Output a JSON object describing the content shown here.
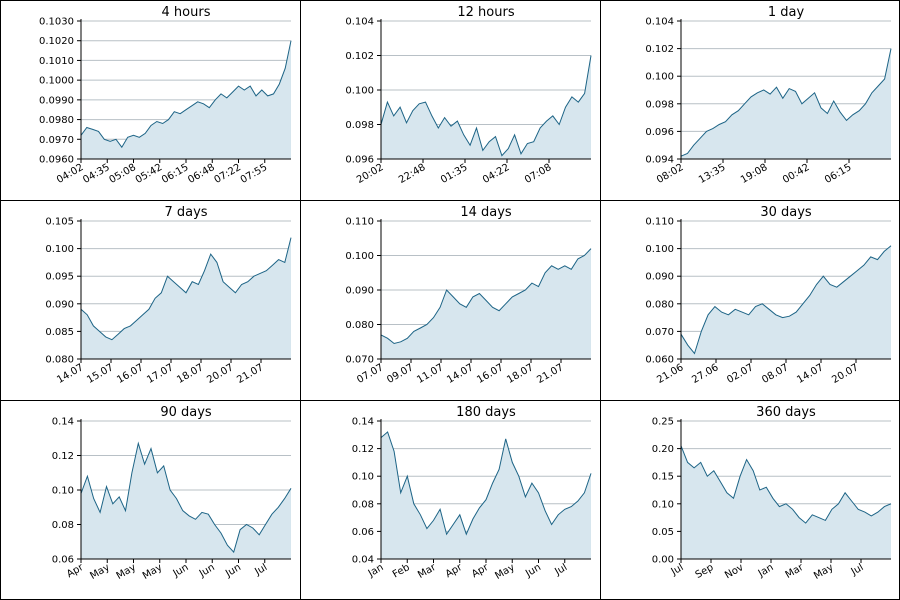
{
  "colors": {
    "line": "#1d6486",
    "fill": "#d7e6ee",
    "grid": "#b8c0c6"
  },
  "chart_data": [
    {
      "type": "area",
      "title": "4 hours",
      "ylim": [
        0.096,
        0.103
      ],
      "yticks": [
        "0.0960",
        "0.0970",
        "0.0980",
        "0.0990",
        "0.1000",
        "0.1010",
        "0.1020",
        "0.1030"
      ],
      "xticks": [
        "04:02",
        "04:35",
        "05:08",
        "05:42",
        "06:15",
        "06:48",
        "07:22",
        "07:55"
      ],
      "series": [
        {
          "y": [
            0.0972,
            0.0976,
            0.0975,
            0.0974,
            0.097,
            0.0969,
            0.097,
            0.0966,
            0.0971,
            0.0972,
            0.0971,
            0.0973,
            0.0977,
            0.0979,
            0.0978,
            0.098,
            0.0984,
            0.0983,
            0.0985,
            0.0987,
            0.0989,
            0.0988,
            0.0986,
            0.099,
            0.0993,
            0.0991,
            0.0994,
            0.0997,
            0.0995,
            0.0997,
            0.0992,
            0.0995,
            0.0992,
            0.0993,
            0.0998,
            0.1006,
            0.102
          ]
        }
      ]
    },
    {
      "type": "area",
      "title": "12 hours",
      "ylim": [
        0.096,
        0.104
      ],
      "yticks": [
        "0.096",
        "0.098",
        "0.100",
        "0.102",
        "0.104"
      ],
      "xticks": [
        "20:02",
        "22:48",
        "01:35",
        "04:22",
        "07:08"
      ],
      "series": [
        {
          "y": [
            0.098,
            0.0993,
            0.0985,
            0.099,
            0.0981,
            0.0988,
            0.0992,
            0.0993,
            0.0985,
            0.0978,
            0.0984,
            0.0979,
            0.0982,
            0.0974,
            0.0968,
            0.0978,
            0.0965,
            0.097,
            0.0973,
            0.0962,
            0.0966,
            0.0974,
            0.0963,
            0.0969,
            0.097,
            0.0978,
            0.0982,
            0.0985,
            0.098,
            0.099,
            0.0996,
            0.0993,
            0.0998,
            0.102
          ]
        }
      ]
    },
    {
      "type": "area",
      "title": "1 day",
      "ylim": [
        0.094,
        0.104
      ],
      "yticks": [
        "0.094",
        "0.096",
        "0.098",
        "0.100",
        "0.102",
        "0.104"
      ],
      "xticks": [
        "08:02",
        "13:35",
        "19:08",
        "00:42",
        "06:15"
      ],
      "series": [
        {
          "y": [
            0.0942,
            0.0944,
            0.095,
            0.0955,
            0.096,
            0.0962,
            0.0965,
            0.0967,
            0.0972,
            0.0975,
            0.098,
            0.0985,
            0.0988,
            0.099,
            0.0987,
            0.0992,
            0.0984,
            0.0991,
            0.0989,
            0.098,
            0.0984,
            0.0988,
            0.0977,
            0.0973,
            0.0982,
            0.0974,
            0.0968,
            0.0972,
            0.0975,
            0.098,
            0.0988,
            0.0993,
            0.0998,
            0.102
          ]
        }
      ]
    },
    {
      "type": "area",
      "title": "7 days",
      "ylim": [
        0.08,
        0.105
      ],
      "yticks": [
        "0.080",
        "0.085",
        "0.090",
        "0.095",
        "0.100",
        "0.105"
      ],
      "xticks": [
        "14.07",
        "15.07",
        "16.07",
        "17.07",
        "18.07",
        "20.07",
        "21.07"
      ],
      "series": [
        {
          "y": [
            0.089,
            0.088,
            0.086,
            0.085,
            0.084,
            0.0835,
            0.0845,
            0.0855,
            0.086,
            0.087,
            0.088,
            0.089,
            0.091,
            0.092,
            0.095,
            0.094,
            0.093,
            0.092,
            0.094,
            0.0935,
            0.096,
            0.099,
            0.0975,
            0.094,
            0.093,
            0.092,
            0.0935,
            0.094,
            0.095,
            0.0955,
            0.096,
            0.097,
            0.098,
            0.0975,
            0.102
          ]
        }
      ]
    },
    {
      "type": "area",
      "title": "14 days",
      "ylim": [
        0.07,
        0.11
      ],
      "yticks": [
        "0.070",
        "0.080",
        "0.090",
        "0.100",
        "0.110"
      ],
      "xticks": [
        "07.07",
        "09.07",
        "11.07",
        "14.07",
        "16.07",
        "18.07",
        "21.07"
      ],
      "series": [
        {
          "y": [
            0.077,
            0.076,
            0.0745,
            0.075,
            0.076,
            0.078,
            0.079,
            0.08,
            0.082,
            0.085,
            0.09,
            0.088,
            0.086,
            0.085,
            0.088,
            0.089,
            0.087,
            0.085,
            0.084,
            0.086,
            0.088,
            0.089,
            0.09,
            0.092,
            0.091,
            0.095,
            0.097,
            0.096,
            0.097,
            0.096,
            0.099,
            0.1,
            0.102
          ]
        }
      ]
    },
    {
      "type": "area",
      "title": "30 days",
      "ylim": [
        0.06,
        0.11
      ],
      "yticks": [
        "0.060",
        "0.070",
        "0.080",
        "0.090",
        "0.100",
        "0.110"
      ],
      "xticks": [
        "21.06",
        "27.06",
        "02.07",
        "08.07",
        "14.07",
        "20.07"
      ],
      "series": [
        {
          "y": [
            0.069,
            0.065,
            0.062,
            0.07,
            0.076,
            0.079,
            0.077,
            0.076,
            0.078,
            0.077,
            0.076,
            0.079,
            0.08,
            0.078,
            0.076,
            0.075,
            0.0755,
            0.077,
            0.08,
            0.083,
            0.087,
            0.09,
            0.087,
            0.086,
            0.088,
            0.09,
            0.092,
            0.094,
            0.097,
            0.096,
            0.099,
            0.101
          ]
        }
      ]
    },
    {
      "type": "area",
      "title": "90 days",
      "ylim": [
        0.06,
        0.14
      ],
      "yticks": [
        "0.06",
        "0.08",
        "0.10",
        "0.12",
        "0.14"
      ],
      "xticks": [
        "Apr",
        "May",
        "May",
        "May",
        "Jun",
        "Jun",
        "Jun",
        "Jul"
      ],
      "series": [
        {
          "y": [
            0.098,
            0.108,
            0.095,
            0.087,
            0.102,
            0.092,
            0.096,
            0.088,
            0.11,
            0.127,
            0.115,
            0.124,
            0.11,
            0.114,
            0.1,
            0.095,
            0.088,
            0.085,
            0.083,
            0.087,
            0.086,
            0.08,
            0.075,
            0.068,
            0.064,
            0.077,
            0.08,
            0.078,
            0.074,
            0.08,
            0.086,
            0.09,
            0.095,
            0.101
          ]
        }
      ]
    },
    {
      "type": "area",
      "title": "180 days",
      "ylim": [
        0.04,
        0.14
      ],
      "yticks": [
        "0.04",
        "0.06",
        "0.08",
        "0.10",
        "0.12",
        "0.14"
      ],
      "xticks": [
        "Jan",
        "Feb",
        "Mar",
        "Apr",
        "Apr",
        "May",
        "Jun",
        "Jul"
      ],
      "series": [
        {
          "y": [
            0.128,
            0.132,
            0.118,
            0.088,
            0.1,
            0.08,
            0.072,
            0.062,
            0.068,
            0.076,
            0.058,
            0.065,
            0.072,
            0.058,
            0.069,
            0.077,
            0.083,
            0.095,
            0.105,
            0.127,
            0.11,
            0.1,
            0.085,
            0.095,
            0.088,
            0.075,
            0.065,
            0.072,
            0.076,
            0.078,
            0.082,
            0.088,
            0.102
          ]
        }
      ]
    },
    {
      "type": "area",
      "title": "360 days",
      "ylim": [
        0.0,
        0.25
      ],
      "yticks": [
        "0.00",
        "0.05",
        "0.10",
        "0.15",
        "0.20",
        "0.25"
      ],
      "xticks": [
        "Jul",
        "Sep",
        "Nov",
        "Jan",
        "Mar",
        "May",
        "Jul"
      ],
      "series": [
        {
          "y": [
            0.205,
            0.175,
            0.165,
            0.175,
            0.15,
            0.16,
            0.14,
            0.12,
            0.11,
            0.15,
            0.18,
            0.16,
            0.125,
            0.13,
            0.11,
            0.095,
            0.1,
            0.09,
            0.075,
            0.065,
            0.08,
            0.075,
            0.07,
            0.09,
            0.1,
            0.12,
            0.105,
            0.09,
            0.085,
            0.078,
            0.085,
            0.095,
            0.1
          ]
        }
      ]
    }
  ]
}
